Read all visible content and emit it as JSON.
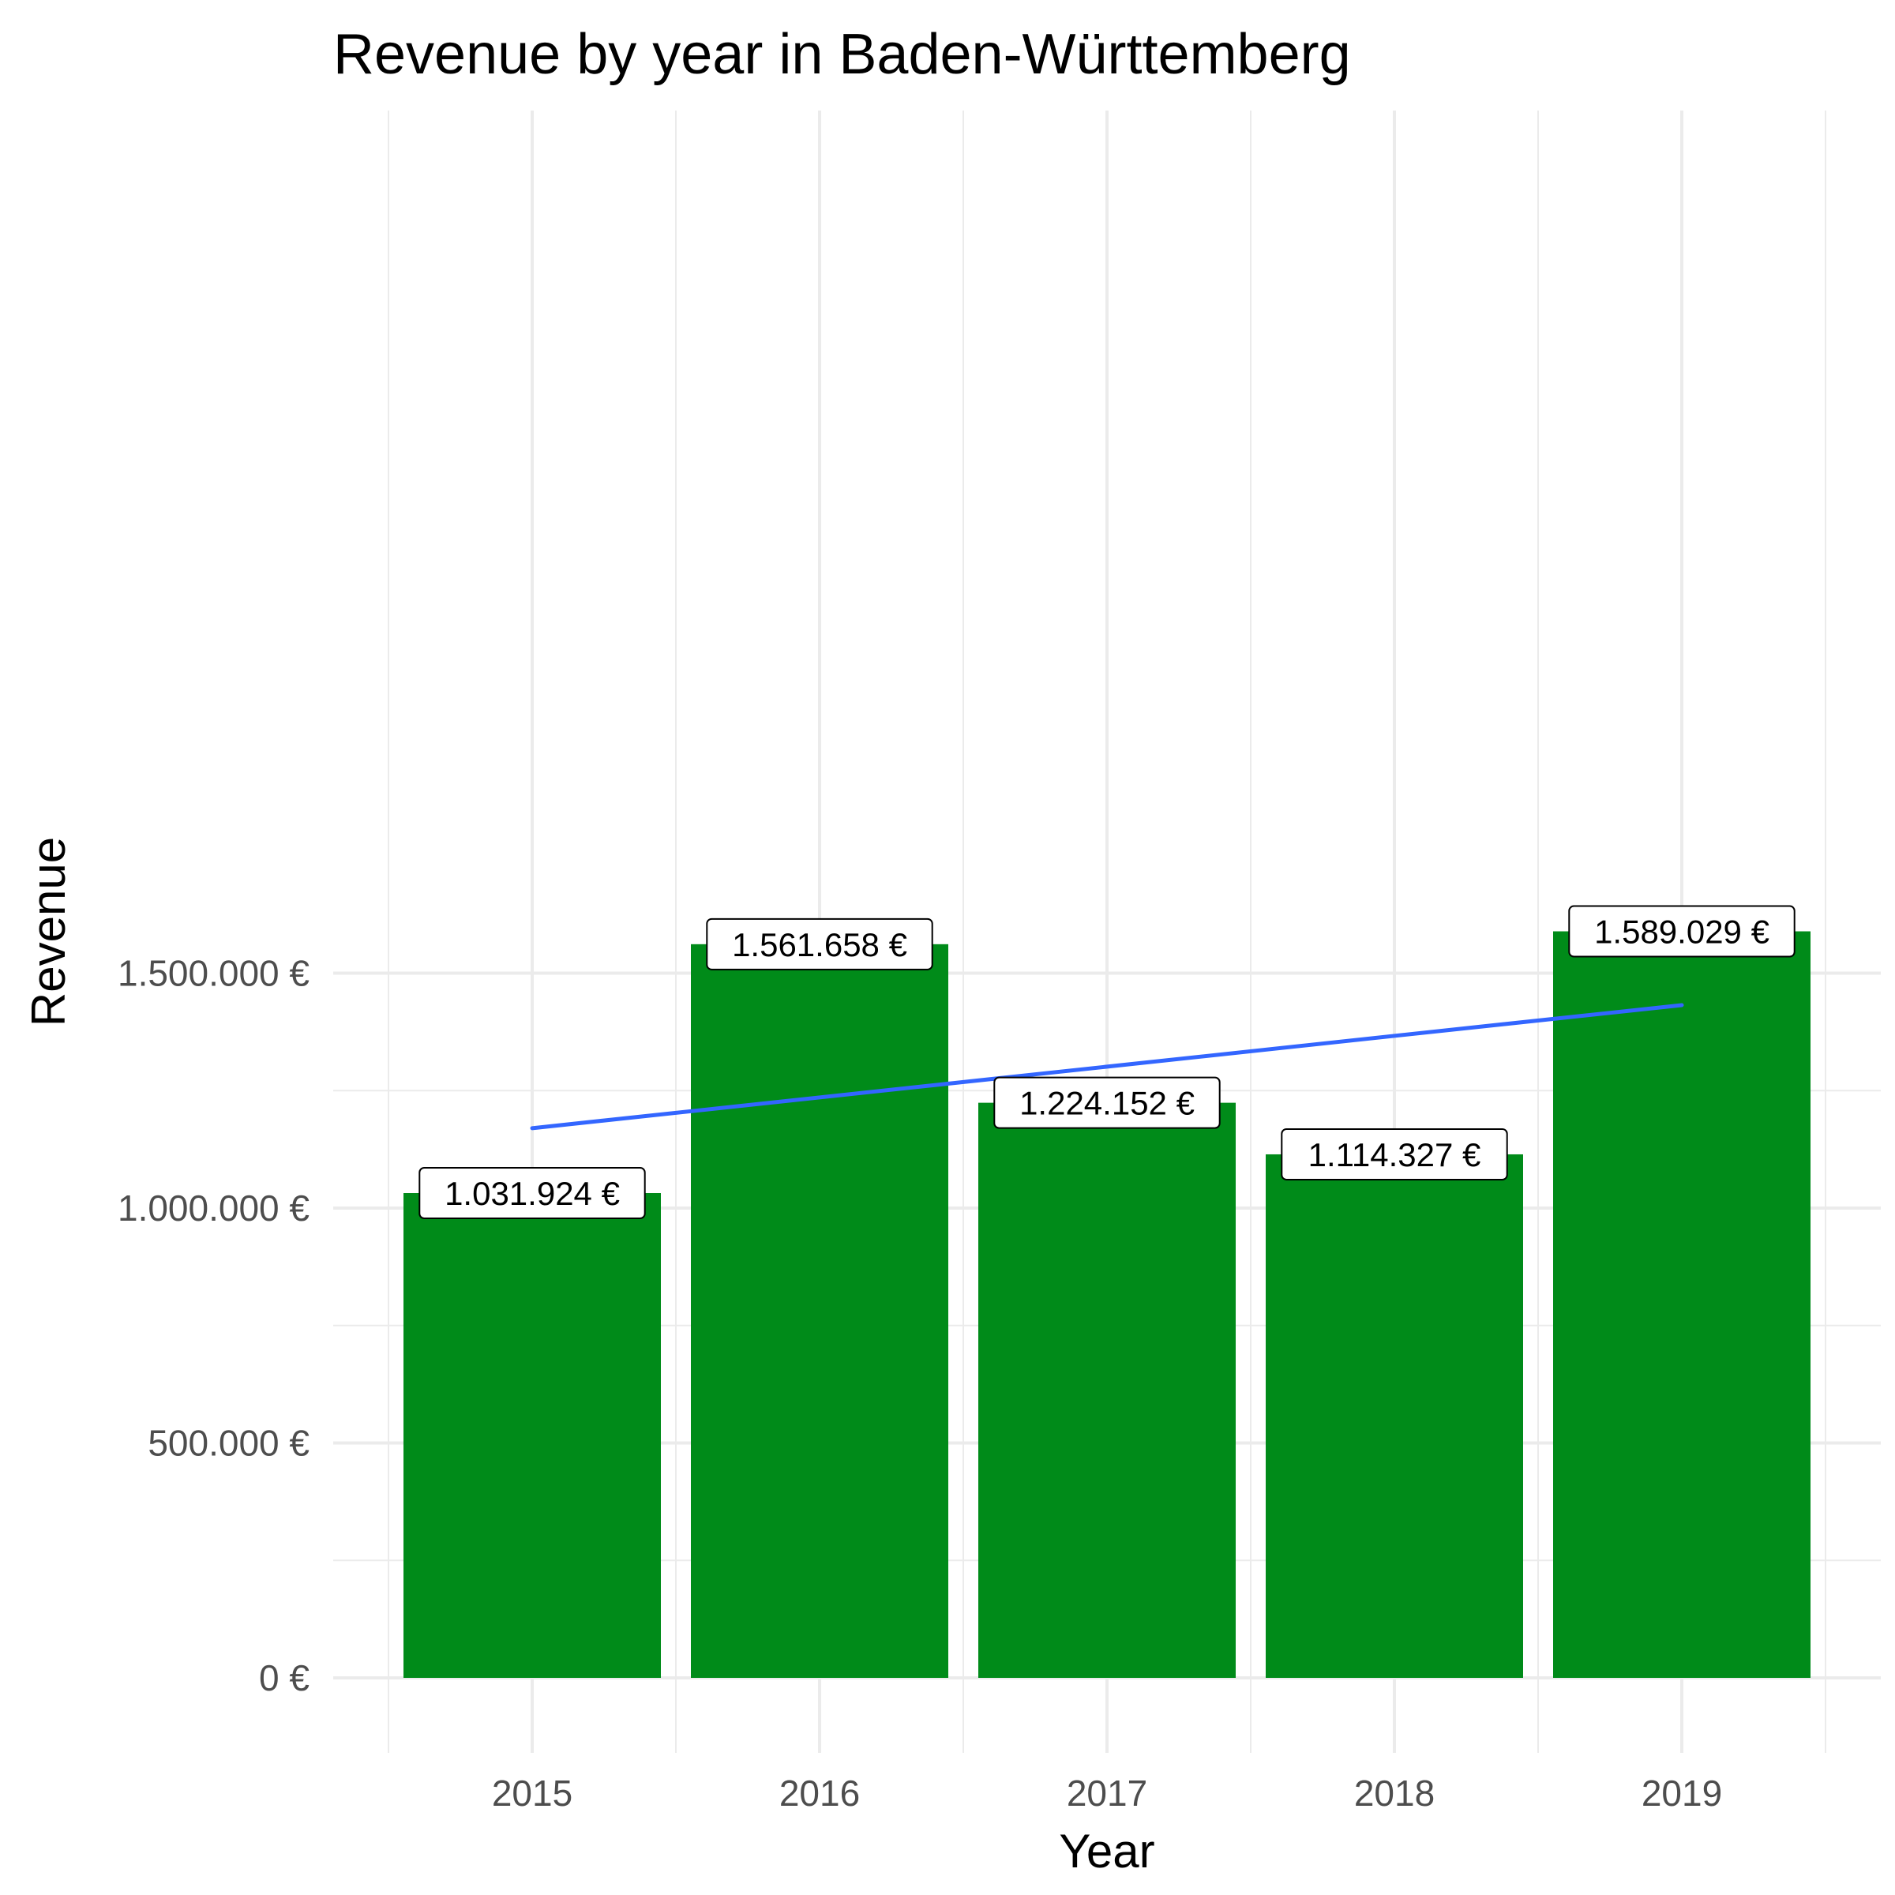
{
  "chart_data": {
    "type": "bar",
    "title": "Revenue by year in Baden-Württemberg",
    "xlabel": "Year",
    "ylabel": "Revenue",
    "categories": [
      "2015",
      "2016",
      "2017",
      "2018",
      "2019"
    ],
    "values": [
      1031924,
      1561658,
      1224152,
      1114327,
      1589029
    ],
    "value_labels": [
      "1.031.924 €",
      "1.561.658 €",
      "1.224.152 €",
      "1.114.327 €",
      "1.589.029 €"
    ],
    "ylim": [
      -165000,
      1680000
    ],
    "y_ticks": [
      0,
      500000,
      1000000,
      1500000
    ],
    "y_tick_labels": [
      "0 €",
      "500.000 €",
      "1.000.000 €",
      "1.500.000 €"
    ],
    "y_minor_ticks": [
      250000,
      750000,
      1250000
    ],
    "trend_line": {
      "type": "linear",
      "start": 1170000,
      "end": 1432000
    },
    "grid": true,
    "colors": {
      "bar": "#008b19",
      "trend": "#3366ff",
      "grid": "#ebebeb"
    }
  }
}
